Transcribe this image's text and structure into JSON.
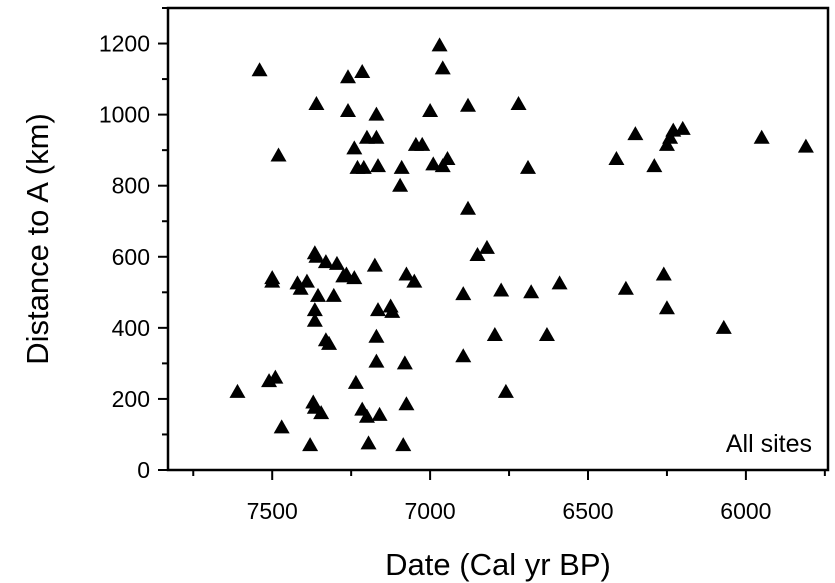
{
  "chart_data": {
    "type": "scatter",
    "title": "",
    "xlabel": "Date (Cal yr BP)",
    "ylabel": "Distance to A (km)",
    "annotation": "All sites",
    "x_reversed": true,
    "xlim": [
      7830,
      5740
    ],
    "ylim": [
      0,
      1300
    ],
    "xticks": [
      7500,
      7000,
      6500,
      6000
    ],
    "yticks": [
      0,
      200,
      400,
      600,
      800,
      1000,
      1200
    ],
    "grid": false,
    "marker": "triangle",
    "marker_color": "#000000",
    "points": [
      [
        7540,
        1125
      ],
      [
        7360,
        1030
      ],
      [
        7480,
        885
      ],
      [
        7260,
        1105
      ],
      [
        7215,
        1120
      ],
      [
        7260,
        1010
      ],
      [
        7170,
        1000
      ],
      [
        7240,
        905
      ],
      [
        7200,
        935
      ],
      [
        7170,
        935
      ],
      [
        7230,
        850
      ],
      [
        7210,
        850
      ],
      [
        7165,
        855
      ],
      [
        7090,
        850
      ],
      [
        7095,
        800
      ],
      [
        6970,
        1195
      ],
      [
        6960,
        1130
      ],
      [
        7000,
        1010
      ],
      [
        6880,
        1025
      ],
      [
        6720,
        1030
      ],
      [
        7045,
        915
      ],
      [
        7025,
        915
      ],
      [
        6990,
        860
      ],
      [
        6960,
        855
      ],
      [
        6945,
        875
      ],
      [
        6690,
        850
      ],
      [
        6880,
        735
      ],
      [
        6820,
        625
      ],
      [
        6850,
        605
      ],
      [
        6350,
        945
      ],
      [
        6410,
        875
      ],
      [
        6290,
        855
      ],
      [
        6250,
        915
      ],
      [
        6240,
        935
      ],
      [
        6230,
        955
      ],
      [
        6200,
        960
      ],
      [
        5950,
        935
      ],
      [
        5810,
        910
      ],
      [
        7500,
        530
      ],
      [
        7500,
        540
      ],
      [
        7420,
        525
      ],
      [
        7410,
        510
      ],
      [
        7390,
        530
      ],
      [
        7365,
        610
      ],
      [
        7360,
        600
      ],
      [
        7330,
        585
      ],
      [
        7295,
        580
      ],
      [
        7275,
        545
      ],
      [
        7265,
        550
      ],
      [
        7240,
        540
      ],
      [
        7305,
        490
      ],
      [
        7355,
        490
      ],
      [
        7365,
        450
      ],
      [
        7365,
        420
      ],
      [
        7330,
        365
      ],
      [
        7320,
        355
      ],
      [
        7175,
        575
      ],
      [
        7165,
        450
      ],
      [
        7125,
        460
      ],
      [
        7120,
        445
      ],
      [
        7075,
        550
      ],
      [
        7050,
        530
      ],
      [
        7170,
        375
      ],
      [
        7170,
        305
      ],
      [
        7080,
        300
      ],
      [
        6895,
        495
      ],
      [
        6775,
        505
      ],
      [
        6680,
        500
      ],
      [
        6590,
        525
      ],
      [
        6380,
        510
      ],
      [
        6260,
        550
      ],
      [
        6250,
        455
      ],
      [
        6070,
        400
      ],
      [
        6795,
        380
      ],
      [
        6630,
        380
      ],
      [
        6895,
        320
      ],
      [
        7610,
        220
      ],
      [
        7510,
        250
      ],
      [
        7490,
        260
      ],
      [
        7470,
        120
      ],
      [
        7370,
        190
      ],
      [
        7365,
        175
      ],
      [
        7345,
        160
      ],
      [
        7380,
        70
      ],
      [
        7235,
        245
      ],
      [
        7215,
        170
      ],
      [
        7200,
        150
      ],
      [
        7195,
        75
      ],
      [
        7160,
        155
      ],
      [
        7075,
        185
      ],
      [
        7085,
        70
      ],
      [
        6760,
        220
      ]
    ]
  }
}
